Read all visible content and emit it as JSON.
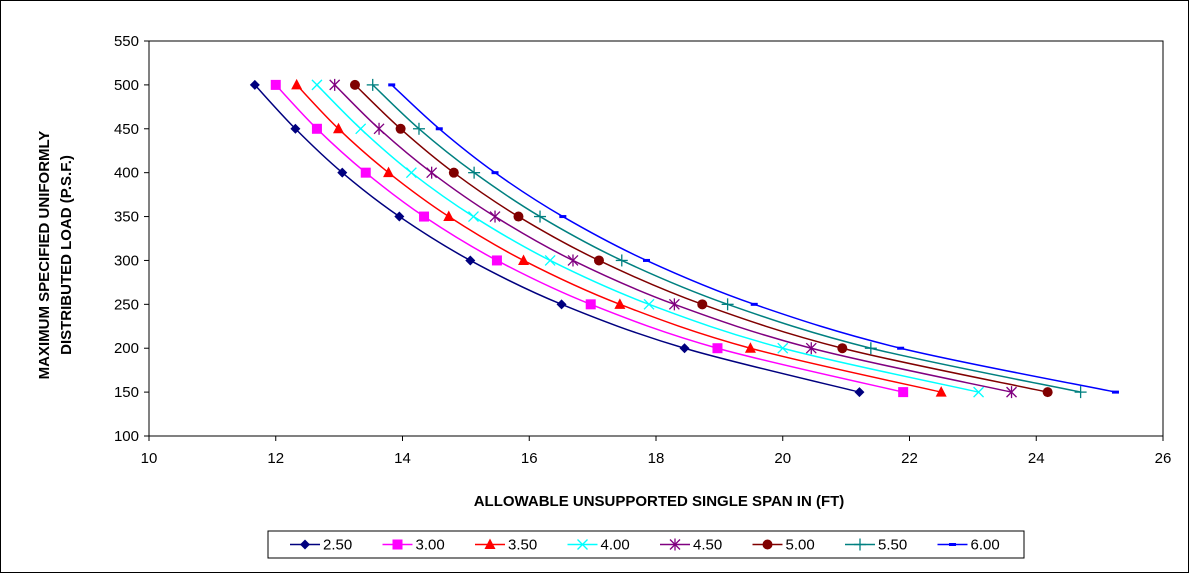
{
  "chart_data": {
    "type": "line",
    "xlabel": "ALLOWABLE UNSUPPORTED SINGLE SPAN IN (FT)",
    "ylabel_lines": [
      "MAXIMUM SPECIFIED UNIFORMLY",
      "DISTRIBUTED LOAD (P.S.F.)"
    ],
    "xlim": [
      10,
      26
    ],
    "ylim": [
      100,
      550
    ],
    "x_ticks": [
      "10",
      "12",
      "14",
      "16",
      "18",
      "20",
      "22",
      "24",
      "26"
    ],
    "y_ticks": [
      "100",
      "150",
      "200",
      "250",
      "300",
      "350",
      "400",
      "450",
      "500",
      "550"
    ],
    "grid": false,
    "legend_position": "bottom",
    "series": [
      {
        "name": "2.50",
        "color": "#00007f",
        "marker": "diamond",
        "points": [
          [
            11.67,
            500
          ],
          [
            12.31,
            450
          ],
          [
            13.05,
            400
          ],
          [
            13.95,
            350
          ],
          [
            15.07,
            300
          ],
          [
            16.51,
            250
          ],
          [
            18.45,
            200
          ],
          [
            21.21,
            150
          ]
        ]
      },
      {
        "name": "3.00",
        "color": "#ff00ff",
        "marker": "square",
        "points": [
          [
            12.0,
            500
          ],
          [
            12.65,
            450
          ],
          [
            13.42,
            400
          ],
          [
            14.34,
            350
          ],
          [
            15.49,
            300
          ],
          [
            16.97,
            250
          ],
          [
            18.97,
            200
          ],
          [
            21.9,
            150
          ]
        ]
      },
      {
        "name": "3.50",
        "color": "#ff0000",
        "marker": "triangle",
        "points": [
          [
            12.33,
            500
          ],
          [
            12.99,
            450
          ],
          [
            13.78,
            400
          ],
          [
            14.73,
            350
          ],
          [
            15.91,
            300
          ],
          [
            17.43,
            250
          ],
          [
            19.49,
            200
          ],
          [
            22.5,
            150
          ]
        ]
      },
      {
        "name": "4.00",
        "color": "#00ffff",
        "marker": "x",
        "points": [
          [
            12.65,
            500
          ],
          [
            13.34,
            450
          ],
          [
            14.14,
            400
          ],
          [
            15.12,
            350
          ],
          [
            16.33,
            300
          ],
          [
            17.89,
            250
          ],
          [
            20.0,
            200
          ],
          [
            23.09,
            150
          ]
        ]
      },
      {
        "name": "4.50",
        "color": "#800080",
        "marker": "star",
        "points": [
          [
            12.93,
            500
          ],
          [
            13.63,
            450
          ],
          [
            14.46,
            400
          ],
          [
            15.46,
            350
          ],
          [
            16.69,
            300
          ],
          [
            18.29,
            250
          ],
          [
            20.45,
            200
          ],
          [
            23.61,
            150
          ]
        ]
      },
      {
        "name": "5.00",
        "color": "#800000",
        "marker": "circle",
        "points": [
          [
            13.25,
            500
          ],
          [
            13.97,
            450
          ],
          [
            14.81,
            400
          ],
          [
            15.83,
            350
          ],
          [
            17.1,
            300
          ],
          [
            18.73,
            250
          ],
          [
            20.94,
            200
          ],
          [
            24.18,
            150
          ]
        ]
      },
      {
        "name": "5.50",
        "color": "#008080",
        "marker": "plus",
        "points": [
          [
            13.53,
            500
          ],
          [
            14.26,
            450
          ],
          [
            15.13,
            400
          ],
          [
            16.17,
            350
          ],
          [
            17.46,
            300
          ],
          [
            19.13,
            250
          ],
          [
            21.39,
            200
          ],
          [
            24.7,
            150
          ]
        ]
      },
      {
        "name": "6.00",
        "color": "#0000ff",
        "marker": "dash",
        "points": [
          [
            13.83,
            500
          ],
          [
            14.58,
            450
          ],
          [
            15.46,
            400
          ],
          [
            16.53,
            350
          ],
          [
            17.85,
            300
          ],
          [
            19.55,
            250
          ],
          [
            21.86,
            200
          ],
          [
            25.25,
            150
          ]
        ]
      }
    ]
  }
}
